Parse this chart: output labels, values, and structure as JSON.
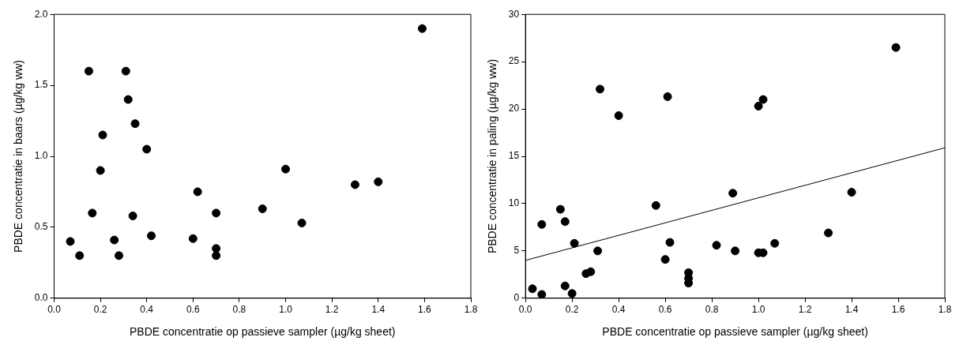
{
  "chart_data": [
    {
      "type": "scatter",
      "xlabel": "PBDE concentratie op passieve sampler (µg/kg sheet)",
      "ylabel": "PBDE concentratie in baars (µg/kg ww)",
      "xlim": [
        0,
        1.8
      ],
      "xticks": [
        {
          "value": 0,
          "label": "0.0"
        },
        {
          "value": 0.2,
          "label": "0.2"
        },
        {
          "value": 0.4,
          "label": "0.4"
        },
        {
          "value": 0.6,
          "label": "0.6"
        },
        {
          "value": 0.8,
          "label": "0.8"
        },
        {
          "value": 1,
          "label": "1.0"
        },
        {
          "value": 1.2,
          "label": "1.2"
        },
        {
          "value": 1.4,
          "label": "1.4"
        },
        {
          "value": 1.6,
          "label": "1.6"
        },
        {
          "value": 1.8,
          "label": "1.8"
        }
      ],
      "ylim": [
        0,
        2
      ],
      "yticks": [
        {
          "value": 0,
          "label": "0.0"
        },
        {
          "value": 0.5,
          "label": "0.5"
        },
        {
          "value": 1,
          "label": "1.0"
        },
        {
          "value": 1.5,
          "label": "1.5"
        },
        {
          "value": 2,
          "label": "2.0"
        }
      ],
      "marker": "circle",
      "grid": false,
      "legend": false,
      "series": [
        {
          "color": "#000000",
          "x": [
            0.07,
            0.11,
            0.15,
            0.165,
            0.2,
            0.21,
            0.26,
            0.28,
            0.31,
            0.32,
            0.34,
            0.35,
            0.4,
            0.42,
            0.6,
            0.62,
            0.7,
            0.7,
            0.7,
            0.9,
            1.0,
            1.07,
            1.3,
            1.4,
            1.59
          ],
          "values": [
            0.4,
            0.3,
            1.6,
            0.6,
            0.9,
            1.15,
            0.41,
            0.3,
            1.6,
            1.4,
            0.58,
            1.23,
            1.05,
            0.44,
            0.42,
            0.75,
            0.6,
            0.35,
            0.3,
            0.63,
            0.91,
            0.53,
            0.8,
            0.82,
            1.9
          ]
        }
      ]
    },
    {
      "type": "scatter",
      "xlabel": "PBDE concentratie op passieve sampler (µg/kg sheet)",
      "ylabel": "PBDE concentratie in paling (µg/kg ww)",
      "xlim": [
        0,
        1.8
      ],
      "xticks": [
        {
          "value": 0,
          "label": "0.0"
        },
        {
          "value": 0.2,
          "label": "0.2"
        },
        {
          "value": 0.4,
          "label": "0.4"
        },
        {
          "value": 0.6,
          "label": "0.6"
        },
        {
          "value": 0.8,
          "label": "0.8"
        },
        {
          "value": 1,
          "label": "1.0"
        },
        {
          "value": 1.2,
          "label": "1.2"
        },
        {
          "value": 1.4,
          "label": "1.4"
        },
        {
          "value": 1.6,
          "label": "1.6"
        },
        {
          "value": 1.8,
          "label": "1.8"
        }
      ],
      "ylim": [
        0,
        30
      ],
      "yticks": [
        0,
        5,
        10,
        15,
        20,
        25,
        30
      ],
      "marker": "circle",
      "grid": false,
      "legend": false,
      "series": [
        {
          "color": "#000000",
          "x": [
            0.03,
            0.07,
            0.07,
            0.15,
            0.17,
            0.17,
            0.2,
            0.21,
            0.26,
            0.28,
            0.31,
            0.32,
            0.4,
            0.56,
            0.6,
            0.61,
            0.62,
            0.7,
            0.7,
            0.7,
            0.82,
            0.89,
            0.9,
            1.0,
            1.0,
            1.02,
            1.02,
            1.07,
            1.3,
            1.4,
            1.59
          ],
          "values": [
            1.0,
            0.4,
            7.8,
            9.4,
            8.1,
            1.3,
            0.5,
            5.8,
            2.6,
            2.8,
            5.0,
            22.1,
            19.3,
            9.8,
            4.1,
            21.3,
            5.9,
            2.7,
            2.1,
            1.6,
            5.6,
            11.1,
            5.0,
            20.3,
            4.8,
            21.0,
            4.8,
            5.8,
            6.9,
            11.2,
            26.5
          ]
        },
        {
          "type": "line",
          "color": "#000000",
          "marker": "none",
          "line_style": "solid",
          "x": [
            0,
            1.8
          ],
          "values": [
            4.0,
            15.9
          ]
        }
      ]
    }
  ]
}
